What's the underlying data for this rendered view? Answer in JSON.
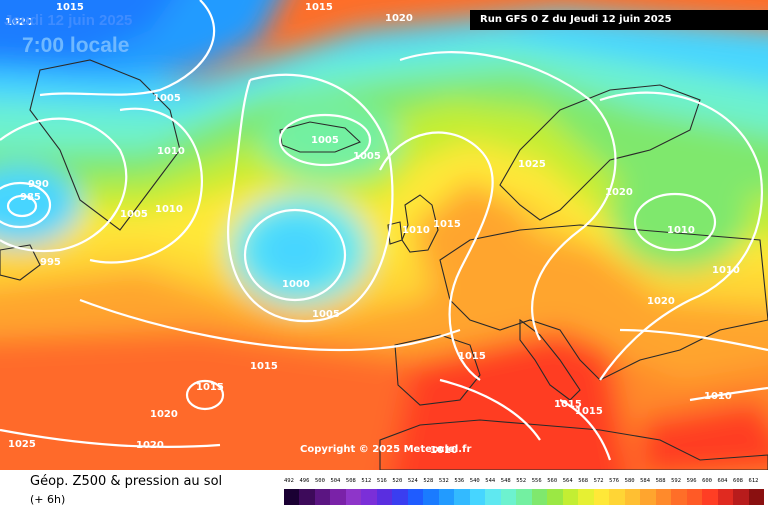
{
  "header": {
    "run_label": "Run GFS 0 Z du Jeudi 12 juin 2025",
    "date_label": "Jeudi 12 juin 2025",
    "time_label": "7:00 locale"
  },
  "footer": {
    "title": "Géop. Z500 & pression au sol",
    "subtitle": "(+ 6h)",
    "copyright": "Copyright © 2025 Meteociel.fr"
  },
  "colors": {
    "land": "#2a2a2a",
    "isobar": "#ffffff"
  },
  "color_scale": {
    "labels": [
      "492",
      "496",
      "500",
      "504",
      "508",
      "512",
      "516",
      "520",
      "524",
      "528",
      "532",
      "536",
      "540",
      "544",
      "548",
      "552",
      "556",
      "560",
      "564",
      "568",
      "572",
      "576",
      "580",
      "584",
      "588",
      "592",
      "596",
      "600",
      "604",
      "608",
      "612"
    ],
    "colors": [
      "#1a0033",
      "#3d0a5a",
      "#5b1582",
      "#7a22a8",
      "#8e35c9",
      "#7b2fd8",
      "#5a2ee0",
      "#3a3ef0",
      "#1f5cff",
      "#1a7bff",
      "#229bff",
      "#33baff",
      "#46d5ff",
      "#5fe8f0",
      "#6df2cf",
      "#73f0a1",
      "#7fe86d",
      "#9be844",
      "#c3ee33",
      "#e6f033",
      "#ffe838",
      "#ffd535",
      "#ffbf32",
      "#ffa52e",
      "#ff8a2b",
      "#ff6e28",
      "#ff5a26",
      "#ff3e24",
      "#e02a20",
      "#b81c1c",
      "#8a1010"
    ]
  },
  "pressure_labels": [
    {
      "text": "1015"
    },
    {
      "text": "1015"
    },
    {
      "text": "1020"
    },
    {
      "text": "1020"
    },
    {
      "text": "1010"
    },
    {
      "text": "990"
    },
    {
      "text": "985"
    },
    {
      "text": "1005"
    },
    {
      "text": "1010"
    },
    {
      "text": "1005"
    },
    {
      "text": "995"
    },
    {
      "text": "1020"
    },
    {
      "text": "1005"
    },
    {
      "text": "1005"
    },
    {
      "text": "1000"
    },
    {
      "text": "1005"
    },
    {
      "text": "1015"
    },
    {
      "text": "1015"
    },
    {
      "text": "1025"
    },
    {
      "text": "1020"
    },
    {
      "text": "1010"
    },
    {
      "text": "1015"
    },
    {
      "text": "1025"
    },
    {
      "text": "1020"
    },
    {
      "text": "1010"
    },
    {
      "text": "1010"
    },
    {
      "text": "1020"
    },
    {
      "text": "1015"
    },
    {
      "text": "1015"
    },
    {
      "text": "1015"
    },
    {
      "text": "1010"
    },
    {
      "text": "1010"
    }
  ]
}
